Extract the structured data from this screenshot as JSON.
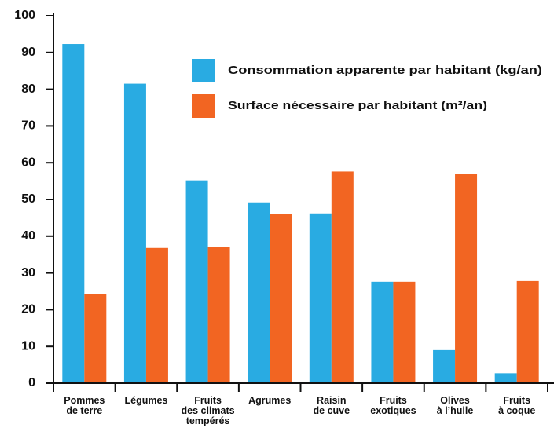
{
  "chart_data": {
    "type": "bar",
    "categories": [
      "Pommes\nde terre",
      "Légumes",
      "Fruits\ndes climats\ntempérés",
      "Agrumes",
      "Raisin\nde cuve",
      "Fruits\nexotiques",
      "Olives\nà l’huile",
      "Fruits\nà coque"
    ],
    "series": [
      {
        "name": "Consommation apparente par habitant (kg/an)",
        "color": "#29abe2",
        "values": [
          92.3,
          81.5,
          55.2,
          49.2,
          46.2,
          27.6,
          9,
          2.7
        ]
      },
      {
        "name": "Surface nécessaire par habitant (m²/an)",
        "color": "#f26522",
        "values": [
          24.2,
          36.8,
          37,
          46,
          57.6,
          27.6,
          57,
          27.8
        ]
      }
    ],
    "ylim": [
      0,
      100
    ],
    "yticks": [
      0,
      10,
      20,
      30,
      40,
      50,
      60,
      70,
      80,
      90,
      100
    ],
    "grid": false
  }
}
